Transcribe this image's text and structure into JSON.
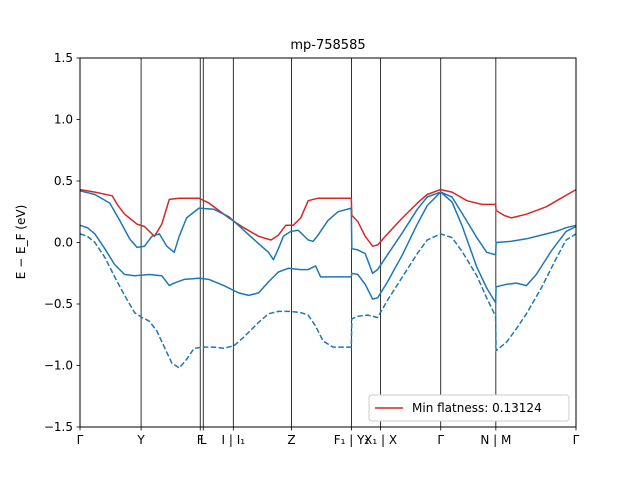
{
  "chart_data": {
    "type": "line",
    "title": "mp-758585",
    "ylabel": "E − E_F (eV)",
    "ylim": [
      -1.5,
      1.5
    ],
    "xlim": [
      0,
      1
    ],
    "yticks": [
      -1.5,
      -1.0,
      -0.5,
      0.0,
      0.5,
      1.0,
      1.5
    ],
    "ytick_labels": [
      "−1.5",
      "−1.0",
      "−0.5",
      "0.0",
      "0.5",
      "1.0",
      "1.5"
    ],
    "kpoints": [
      {
        "pos": 0.0,
        "label": "Γ"
      },
      {
        "pos": 0.1232,
        "label": "Y"
      },
      {
        "pos": 0.2424,
        "label": "F"
      },
      {
        "pos": 0.2485,
        "label": "L"
      },
      {
        "pos": 0.3091,
        "label": "I | I₁"
      },
      {
        "pos": 0.4263,
        "label": "Z"
      },
      {
        "pos": 0.5475,
        "label": "F₁ | Y₁"
      },
      {
        "pos": 0.6061,
        "label": "X₁ | X"
      },
      {
        "pos": 0.7273,
        "label": "Γ"
      },
      {
        "pos": 0.8384,
        "label": "N | M"
      },
      {
        "pos": 1.0,
        "label": "Γ"
      }
    ],
    "legend": {
      "label": "Min flatness: 0.13124",
      "placement": "lower-right"
    },
    "grid": false,
    "series": [
      {
        "color": "#d62728",
        "dash": "solid",
        "points": [
          [
            0,
            0.43
          ],
          [
            0.03,
            0.41
          ],
          [
            0.065,
            0.38
          ],
          [
            0.075,
            0.31
          ],
          [
            0.09,
            0.23
          ],
          [
            0.115,
            0.15
          ],
          [
            0.13,
            0.13
          ],
          [
            0.15,
            0.05
          ],
          [
            0.165,
            0.15
          ],
          [
            0.18,
            0.35
          ],
          [
            0.2,
            0.36
          ],
          [
            0.24,
            0.36
          ],
          [
            0.26,
            0.32
          ],
          [
            0.3,
            0.2
          ],
          [
            0.33,
            0.12
          ],
          [
            0.36,
            0.05
          ],
          [
            0.385,
            0.02
          ],
          [
            0.4,
            0.06
          ],
          [
            0.415,
            0.14
          ],
          [
            0.43,
            0.14
          ],
          [
            0.445,
            0.2
          ],
          [
            0.46,
            0.34
          ],
          [
            0.48,
            0.36
          ],
          [
            0.5,
            0.36
          ],
          [
            0.547,
            0.36
          ],
          [
            0.548,
            0.22
          ],
          [
            0.56,
            0.17
          ],
          [
            0.575,
            0.05
          ],
          [
            0.59,
            -0.03
          ],
          [
            0.6,
            -0.02
          ],
          [
            0.62,
            0.07
          ],
          [
            0.65,
            0.2
          ],
          [
            0.68,
            0.32
          ],
          [
            0.7,
            0.39
          ],
          [
            0.727,
            0.43
          ],
          [
            0.75,
            0.41
          ],
          [
            0.78,
            0.34
          ],
          [
            0.81,
            0.31
          ],
          [
            0.838,
            0.31
          ],
          [
            0.839,
            0.26
          ],
          [
            0.855,
            0.22
          ],
          [
            0.87,
            0.2
          ],
          [
            0.9,
            0.23
          ],
          [
            0.94,
            0.29
          ],
          [
            0.97,
            0.36
          ],
          [
            1.0,
            0.43
          ]
        ]
      },
      {
        "color": "#1f77b4",
        "dash": "solid",
        "points": [
          [
            0,
            0.42
          ],
          [
            0.03,
            0.39
          ],
          [
            0.06,
            0.32
          ],
          [
            0.08,
            0.18
          ],
          [
            0.1,
            0.03
          ],
          [
            0.115,
            -0.04
          ],
          [
            0.13,
            -0.03
          ],
          [
            0.145,
            0.05
          ],
          [
            0.16,
            0.07
          ],
          [
            0.175,
            -0.03
          ],
          [
            0.19,
            -0.08
          ],
          [
            0.2,
            0.05
          ],
          [
            0.215,
            0.2
          ],
          [
            0.24,
            0.28
          ],
          [
            0.27,
            0.27
          ],
          [
            0.3,
            0.21
          ],
          [
            0.33,
            0.1
          ],
          [
            0.36,
            -0.01
          ],
          [
            0.38,
            -0.08
          ],
          [
            0.39,
            -0.14
          ],
          [
            0.4,
            -0.05
          ],
          [
            0.41,
            0.05
          ],
          [
            0.425,
            0.09
          ],
          [
            0.44,
            0.1
          ],
          [
            0.45,
            0.06
          ],
          [
            0.46,
            0.02
          ],
          [
            0.47,
            0.01
          ],
          [
            0.48,
            0.06
          ],
          [
            0.5,
            0.18
          ],
          [
            0.52,
            0.25
          ],
          [
            0.547,
            0.28
          ],
          [
            0.548,
            -0.05
          ],
          [
            0.56,
            -0.06
          ],
          [
            0.575,
            -0.09
          ],
          [
            0.59,
            -0.25
          ],
          [
            0.6,
            -0.22
          ],
          [
            0.62,
            -0.1
          ],
          [
            0.65,
            0.08
          ],
          [
            0.68,
            0.27
          ],
          [
            0.7,
            0.37
          ],
          [
            0.727,
            0.41
          ],
          [
            0.75,
            0.37
          ],
          [
            0.77,
            0.24
          ],
          [
            0.8,
            0.04
          ],
          [
            0.82,
            -0.08
          ],
          [
            0.838,
            -0.1
          ],
          [
            0.839,
            0.0
          ],
          [
            0.87,
            0.01
          ],
          [
            0.9,
            0.03
          ],
          [
            0.93,
            0.06
          ],
          [
            0.96,
            0.09
          ],
          [
            0.98,
            0.12
          ],
          [
            1.0,
            0.14
          ]
        ]
      },
      {
        "color": "#1f77b4",
        "dash": "solid",
        "points": [
          [
            0,
            0.14
          ],
          [
            0.015,
            0.12
          ],
          [
            0.03,
            0.07
          ],
          [
            0.05,
            -0.05
          ],
          [
            0.07,
            -0.18
          ],
          [
            0.09,
            -0.26
          ],
          [
            0.11,
            -0.27
          ],
          [
            0.14,
            -0.26
          ],
          [
            0.165,
            -0.27
          ],
          [
            0.18,
            -0.35
          ],
          [
            0.19,
            -0.33
          ],
          [
            0.21,
            -0.3
          ],
          [
            0.24,
            -0.29
          ],
          [
            0.26,
            -0.3
          ],
          [
            0.29,
            -0.35
          ],
          [
            0.32,
            -0.41
          ],
          [
            0.34,
            -0.43
          ],
          [
            0.36,
            -0.41
          ],
          [
            0.38,
            -0.32
          ],
          [
            0.4,
            -0.24
          ],
          [
            0.42,
            -0.21
          ],
          [
            0.445,
            -0.22
          ],
          [
            0.46,
            -0.22
          ],
          [
            0.475,
            -0.19
          ],
          [
            0.485,
            -0.28
          ],
          [
            0.5,
            -0.28
          ],
          [
            0.547,
            -0.28
          ],
          [
            0.548,
            -0.25
          ],
          [
            0.56,
            -0.26
          ],
          [
            0.575,
            -0.34
          ],
          [
            0.59,
            -0.46
          ],
          [
            0.6,
            -0.45
          ],
          [
            0.62,
            -0.32
          ],
          [
            0.65,
            -0.1
          ],
          [
            0.68,
            0.15
          ],
          [
            0.7,
            0.3
          ],
          [
            0.727,
            0.41
          ],
          [
            0.75,
            0.33
          ],
          [
            0.77,
            0.14
          ],
          [
            0.8,
            -0.2
          ],
          [
            0.82,
            -0.37
          ],
          [
            0.838,
            -0.49
          ],
          [
            0.839,
            -0.36
          ],
          [
            0.86,
            -0.34
          ],
          [
            0.88,
            -0.33
          ],
          [
            0.9,
            -0.35
          ],
          [
            0.92,
            -0.26
          ],
          [
            0.95,
            -0.07
          ],
          [
            0.98,
            0.09
          ],
          [
            1.0,
            0.13
          ]
        ]
      },
      {
        "color": "#1f77b4",
        "dash": "dashed",
        "points": [
          [
            0,
            0.07
          ],
          [
            0.015,
            0.05
          ],
          [
            0.03,
            0.0
          ],
          [
            0.05,
            -0.12
          ],
          [
            0.07,
            -0.28
          ],
          [
            0.09,
            -0.43
          ],
          [
            0.11,
            -0.57
          ],
          [
            0.125,
            -0.61
          ],
          [
            0.14,
            -0.64
          ],
          [
            0.155,
            -0.72
          ],
          [
            0.17,
            -0.85
          ],
          [
            0.185,
            -0.98
          ],
          [
            0.2,
            -1.02
          ],
          [
            0.215,
            -0.95
          ],
          [
            0.23,
            -0.86
          ],
          [
            0.25,
            -0.85
          ],
          [
            0.27,
            -0.85
          ],
          [
            0.29,
            -0.86
          ],
          [
            0.31,
            -0.84
          ],
          [
            0.33,
            -0.77
          ],
          [
            0.36,
            -0.65
          ],
          [
            0.38,
            -0.58
          ],
          [
            0.4,
            -0.56
          ],
          [
            0.425,
            -0.56
          ],
          [
            0.445,
            -0.57
          ],
          [
            0.46,
            -0.59
          ],
          [
            0.475,
            -0.68
          ],
          [
            0.49,
            -0.8
          ],
          [
            0.51,
            -0.85
          ],
          [
            0.547,
            -0.85
          ],
          [
            0.548,
            -0.62
          ],
          [
            0.56,
            -0.6
          ],
          [
            0.58,
            -0.59
          ],
          [
            0.6,
            -0.61
          ],
          [
            0.62,
            -0.47
          ],
          [
            0.65,
            -0.28
          ],
          [
            0.68,
            -0.09
          ],
          [
            0.7,
            0.02
          ],
          [
            0.727,
            0.07
          ],
          [
            0.75,
            0.04
          ],
          [
            0.77,
            -0.07
          ],
          [
            0.8,
            -0.27
          ],
          [
            0.82,
            -0.45
          ],
          [
            0.838,
            -0.6
          ],
          [
            0.839,
            -0.88
          ],
          [
            0.86,
            -0.81
          ],
          [
            0.88,
            -0.7
          ],
          [
            0.9,
            -0.58
          ],
          [
            0.93,
            -0.37
          ],
          [
            0.96,
            -0.13
          ],
          [
            0.98,
            0.02
          ],
          [
            1.0,
            0.07
          ]
        ]
      }
    ]
  }
}
